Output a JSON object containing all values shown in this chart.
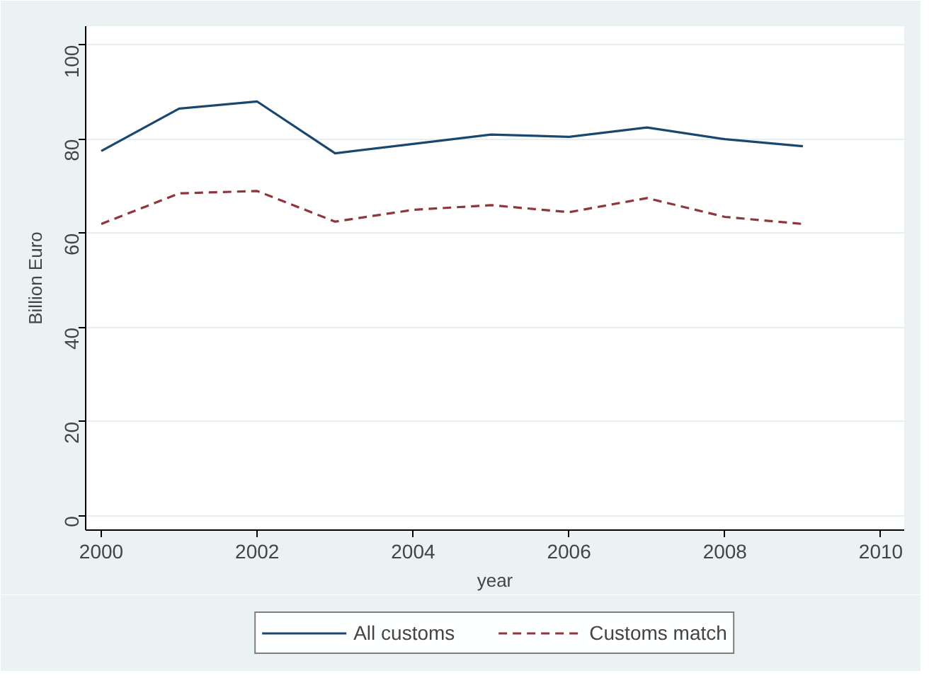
{
  "chart_data": {
    "type": "line",
    "xlabel": "year",
    "ylabel": "Billion Euro",
    "x": [
      2000,
      2001,
      2002,
      2003,
      2004,
      2005,
      2006,
      2007,
      2008,
      2009
    ],
    "series": [
      {
        "name": "All customs",
        "color": "#1a476f",
        "line_style": "solid",
        "values": [
          77.5,
          86.5,
          88,
          77,
          79,
          81,
          80.5,
          82.5,
          80,
          78.5
        ]
      },
      {
        "name": "Customs match",
        "color": "#90353b",
        "line_style": "dashed",
        "values": [
          62,
          68.5,
          69,
          62.5,
          65,
          66,
          64.5,
          67.5,
          63.5,
          62
        ]
      }
    ],
    "xlim": [
      1999.8,
      2010.3
    ],
    "ylim": [
      -3,
      104
    ],
    "xticks": [
      2000,
      2002,
      2004,
      2006,
      2008,
      2010
    ],
    "yticks": [
      0,
      20,
      40,
      60,
      80,
      100
    ],
    "grid": "y",
    "legend": "bottom",
    "marker": "none"
  }
}
